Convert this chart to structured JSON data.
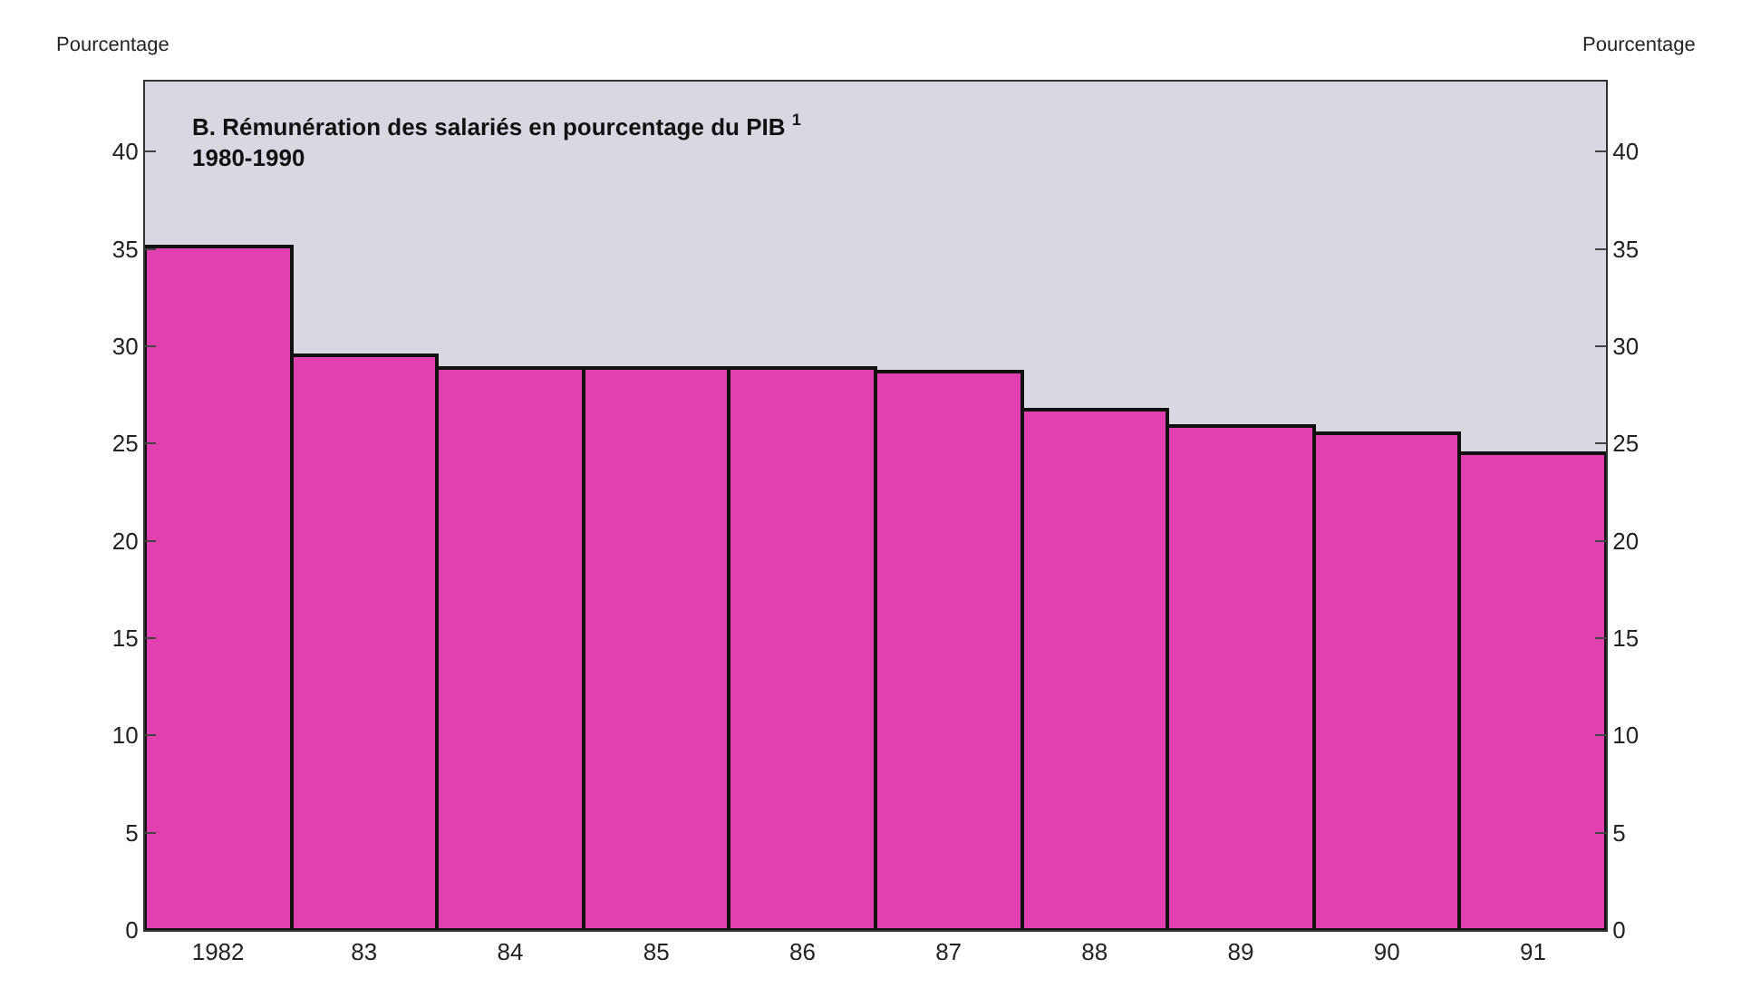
{
  "chart_data": {
    "type": "bar",
    "title": "B. Rémunération des salariés en pourcentage du PIB $^{1}$",
    "subtitle": "1980-1990",
    "ylabel": "Pourcentage",
    "y2label": "Pourcentage",
    "categories": [
      "1982",
      "83",
      "84",
      "85",
      "86",
      "87",
      "88",
      "89",
      "90",
      "91"
    ],
    "values": [
      35.1,
      29.5,
      28.9,
      28.9,
      28.9,
      28.7,
      26.7,
      25.9,
      25.5,
      24.5
    ],
    "color": "#e040b0",
    "ylim": [
      0,
      43.6
    ],
    "yticks": [
      0,
      5,
      10,
      15,
      20,
      25,
      30,
      35,
      40
    ],
    "y2lim": [
      0,
      43.6
    ],
    "y2ticks": [
      0,
      5,
      10,
      15,
      20,
      25,
      30,
      35,
      40
    ],
    "grid": false,
    "legend": false
  }
}
